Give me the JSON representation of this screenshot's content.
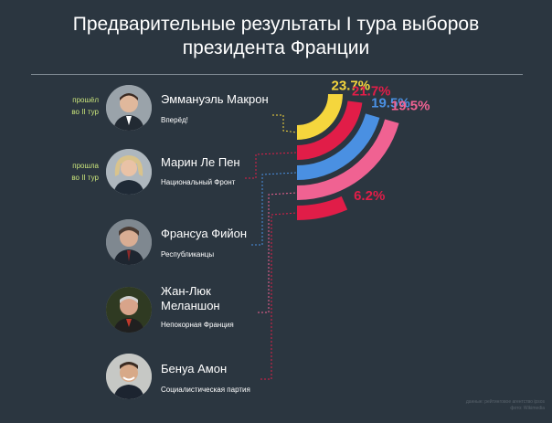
{
  "header": {
    "title_line1": "Предварительные результаты I тура выборов",
    "title_line2": "президента Франции"
  },
  "candidates": [
    {
      "name": "Эммануэль Макрон",
      "party": "Вперёд!",
      "status_line1": "прошёл",
      "status_line2": "во II тур",
      "color": "#f5d63d"
    },
    {
      "name": "Марин Ле Пен",
      "party": "Национальный Фронт",
      "status_line1": "прошла",
      "status_line2": "во II тур",
      "color": "#e11d48"
    },
    {
      "name": "Франсуа Фийон",
      "party": "Республиканцы",
      "status_line1": "",
      "status_line2": "",
      "color": "#4a90e2"
    },
    {
      "name_line1": "Жан-Люк",
      "name_line2": "Меланшон",
      "party": "Непокорная Франция",
      "status_line1": "",
      "status_line2": "",
      "color": "#f06292"
    },
    {
      "name": "Бенуа Амон",
      "party": "Социалистическая партия",
      "status_line1": "",
      "status_line2": "",
      "color": "#e11d48"
    }
  ],
  "chart_data": {
    "type": "bar",
    "title": "Предварительные результаты I тура выборов президента Франции",
    "categories": [
      "Эммануэль Макрон",
      "Марин Ле Пен",
      "Франсуа Фийон",
      "Жан-Люк Меланшон",
      "Бенуа Амон"
    ],
    "values": [
      23.7,
      21.7,
      19.5,
      19.5,
      6.2
    ],
    "labels": [
      "23.7%",
      "21.7%",
      "19.5%",
      "19.5%",
      "6.2%"
    ],
    "colors": [
      "#f5d63d",
      "#e11d48",
      "#4a90e2",
      "#f06292",
      "#e11d48"
    ],
    "unit": "%"
  },
  "credit": {
    "line1": "данные: рейтинговое агентство ipsos",
    "line2": "фото: Wikimedia"
  }
}
